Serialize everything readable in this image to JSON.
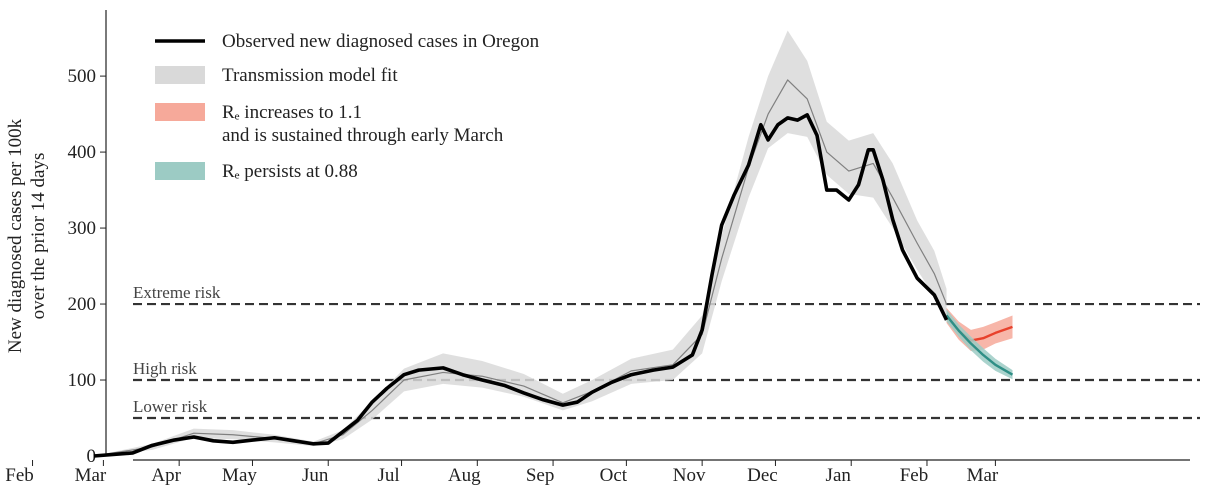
{
  "chart_data": {
    "type": "line",
    "ylabel": "New diagnosed cases per 100k\nover the prior 14 days",
    "xlim": [
      12,
      445
    ],
    "xticks": [
      {
        "value": 31,
        "label": "Feb"
      },
      {
        "value": 60,
        "label": "Mar"
      },
      {
        "value": 91,
        "label": "Apr"
      },
      {
        "value": 121,
        "label": "May"
      },
      {
        "value": 152,
        "label": "Jun"
      },
      {
        "value": 182,
        "label": "Jul"
      },
      {
        "value": 213,
        "label": "Aug"
      },
      {
        "value": 244,
        "label": "Sep"
      },
      {
        "value": 274,
        "label": "Oct"
      },
      {
        "value": 305,
        "label": "Nov"
      },
      {
        "value": 335,
        "label": "Dec"
      },
      {
        "value": 366,
        "label": "Jan"
      },
      {
        "value": 397,
        "label": "Feb"
      },
      {
        "value": 425,
        "label": "Mar"
      }
    ],
    "ylim": [
      0,
      585
    ],
    "yticks": [
      0,
      100,
      200,
      300,
      400,
      500
    ],
    "thresholds": [
      {
        "value": 200,
        "label": "Extreme risk"
      },
      {
        "value": 100,
        "label": "High risk"
      },
      {
        "value": 50,
        "label": "Lower risk"
      }
    ],
    "series": [
      {
        "name": "Transmission model fit",
        "color": "#808080",
        "band_color": "#d9d9d9",
        "x": [
          56,
          80,
          97,
          113,
          130,
          146,
          158,
          170,
          183,
          199,
          215,
          232,
          248,
          260,
          276,
          293,
          305,
          313,
          324,
          332,
          340,
          348,
          356,
          365,
          375,
          383,
          393,
          400,
          405
        ],
        "values": [
          0,
          12,
          30,
          28,
          23,
          16,
          28,
          60,
          100,
          110,
          105,
          92,
          70,
          85,
          112,
          120,
          160,
          260,
          380,
          450,
          495,
          470,
          400,
          375,
          385,
          340,
          280,
          240,
          200
        ],
        "lower": [
          0,
          8,
          24,
          22,
          18,
          13,
          22,
          48,
          85,
          95,
          90,
          78,
          60,
          72,
          95,
          100,
          135,
          230,
          340,
          405,
          425,
          420,
          370,
          345,
          340,
          300,
          245,
          210,
          180
        ],
        "upper": [
          0,
          16,
          36,
          34,
          28,
          19,
          34,
          72,
          115,
          135,
          125,
          108,
          82,
          100,
          128,
          140,
          185,
          290,
          420,
          500,
          560,
          520,
          440,
          415,
          425,
          385,
          310,
          270,
          220
        ]
      },
      {
        "name": "Rₑ increases to 1.1\nand is sustained through early March",
        "color": "#e8412c",
        "band_color": "#f6a99a",
        "x": [
          405,
          410,
          415,
          420,
          425,
          432
        ],
        "values": [
          185,
          165,
          152,
          155,
          162,
          170
        ],
        "lower": [
          175,
          153,
          138,
          140,
          148,
          155
        ],
        "upper": [
          195,
          177,
          166,
          170,
          176,
          185
        ]
      },
      {
        "name": "Rₑ persists at 0.88",
        "color": "#2f8f86",
        "band_color": "#9ccbc4",
        "x": [
          405,
          410,
          415,
          420,
          425,
          432
        ],
        "values": [
          185,
          165,
          148,
          133,
          120,
          107
        ],
        "lower": [
          177,
          157,
          139,
          124,
          112,
          101
        ],
        "upper": [
          193,
          173,
          157,
          142,
          128,
          113
        ]
      },
      {
        "name": "Observed new diagnosed cases in Oregon",
        "color": "#000000",
        "x": [
          56,
          72,
          80,
          89,
          97,
          105,
          113,
          121,
          130,
          138,
          146,
          152,
          158,
          164,
          170,
          176,
          183,
          189,
          199,
          207,
          215,
          224,
          232,
          240,
          248,
          254,
          260,
          268,
          276,
          285,
          293,
          301,
          305,
          309,
          313,
          318,
          324,
          329,
          332,
          336,
          340,
          344,
          348,
          352,
          356,
          360,
          365,
          369,
          373,
          375,
          379,
          383,
          387,
          393,
          400,
          405
        ],
        "values": [
          0,
          4,
          14,
          21,
          25,
          20,
          18,
          21,
          24,
          20,
          16,
          17,
          32,
          47,
          71,
          89,
          107,
          113,
          116,
          107,
          100,
          93,
          83,
          74,
          67,
          71,
          84,
          97,
          107,
          113,
          117,
          133,
          166,
          238,
          304,
          343,
          383,
          436,
          416,
          436,
          445,
          442,
          449,
          422,
          350,
          350,
          337,
          357,
          403,
          403,
          363,
          311,
          271,
          234,
          212,
          179
        ]
      }
    ],
    "legend_order": [
      3,
      0,
      1,
      2
    ]
  }
}
